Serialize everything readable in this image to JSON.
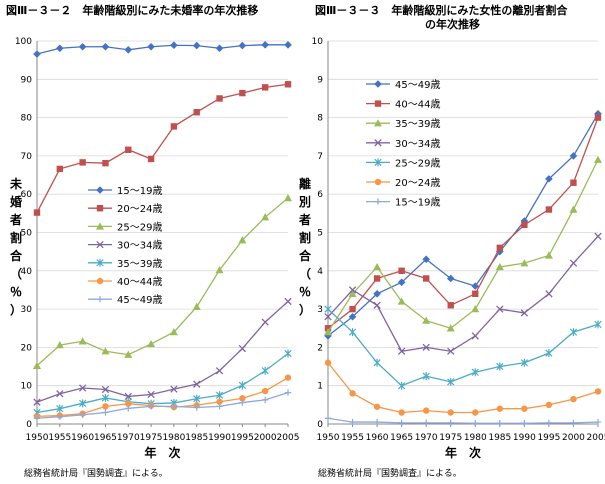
{
  "chart_data": [
    {
      "id": "left",
      "type": "line",
      "title": "図Ⅲ－３－２　年齢階級別にみた未婚率の年次推移",
      "xlabel": "年　次",
      "ylabel": "未婚者割合（％）",
      "ylim": [
        0,
        100
      ],
      "ytick_step": 10,
      "source": "総務省統計局『国勢調査』による。",
      "x": [
        1950,
        1955,
        1960,
        1965,
        1970,
        1975,
        1980,
        1985,
        1990,
        1995,
        2000,
        2005
      ],
      "grid": true,
      "legend_position": "middle-left",
      "series": [
        {
          "name": "15～19歳",
          "color": "#4472C4",
          "marker": "diamond",
          "values": [
            96.6,
            98.1,
            98.5,
            98.5,
            97.7,
            98.5,
            98.9,
            98.8,
            98.1,
            98.8,
            99.0,
            99.0
          ]
        },
        {
          "name": "20～24歳",
          "color": "#C0504D",
          "marker": "square",
          "values": [
            55.2,
            66.6,
            68.3,
            68.1,
            71.6,
            69.2,
            77.7,
            81.4,
            85.0,
            86.4,
            87.9,
            88.7
          ]
        },
        {
          "name": "25～29歳",
          "color": "#9BBB59",
          "marker": "triangle",
          "values": [
            15.2,
            20.6,
            21.6,
            19.0,
            18.1,
            20.9,
            24.0,
            30.6,
            40.2,
            48.0,
            54.0,
            59.0
          ]
        },
        {
          "name": "30～34歳",
          "color": "#8064A2",
          "marker": "x",
          "values": [
            5.7,
            7.9,
            9.4,
            9.0,
            7.2,
            7.7,
            9.1,
            10.4,
            13.9,
            19.7,
            26.6,
            32.0
          ]
        },
        {
          "name": "35～39歳",
          "color": "#4BACC6",
          "marker": "star",
          "values": [
            3.0,
            4.0,
            5.4,
            6.8,
            5.8,
            5.3,
            5.5,
            6.6,
            7.5,
            10.1,
            13.9,
            18.4
          ]
        },
        {
          "name": "40～44歳",
          "color": "#F79646",
          "marker": "circle",
          "values": [
            2.0,
            2.2,
            2.7,
            4.6,
            5.3,
            4.8,
            4.4,
            4.9,
            5.8,
            6.7,
            8.6,
            12.1
          ]
        },
        {
          "name": "45～49歳",
          "color": "#8EA9DB",
          "marker": "plus",
          "values": [
            1.5,
            1.9,
            2.4,
            3.0,
            4.1,
            4.6,
            4.6,
            4.3,
            4.6,
            5.6,
            6.3,
            8.2
          ]
        }
      ]
    },
    {
      "id": "right",
      "type": "line",
      "title": "図Ⅲ－３－３　年齢階級別にみた女性の離別者割合",
      "title2": "の年次推移",
      "xlabel": "年　次",
      "ylabel": "離別者割合（％）",
      "ylim": [
        0,
        10
      ],
      "ytick_step": 1,
      "source": "総務省統計局『国勢調査』による。",
      "x": [
        1950,
        1955,
        1960,
        1965,
        1970,
        1975,
        1980,
        1985,
        1990,
        1995,
        2000,
        2005
      ],
      "grid": true,
      "legend_position": "top-left",
      "series": [
        {
          "name": "45～49歳",
          "color": "#4472C4",
          "marker": "diamond",
          "values": [
            2.3,
            2.8,
            3.4,
            3.7,
            4.3,
            3.8,
            3.6,
            4.5,
            5.3,
            6.4,
            7.0,
            8.1
          ]
        },
        {
          "name": "40～44歳",
          "color": "#C0504D",
          "marker": "square",
          "values": [
            2.5,
            3.0,
            3.8,
            4.0,
            3.8,
            3.1,
            3.4,
            4.6,
            5.2,
            5.6,
            6.3,
            8.0
          ]
        },
        {
          "name": "35～39歳",
          "color": "#9BBB59",
          "marker": "triangle",
          "values": [
            2.4,
            3.4,
            4.1,
            3.2,
            2.7,
            2.5,
            3.0,
            4.1,
            4.2,
            4.4,
            5.6,
            6.9
          ]
        },
        {
          "name": "30～34歳",
          "color": "#8064A2",
          "marker": "x",
          "values": [
            2.8,
            3.5,
            3.1,
            1.9,
            2.0,
            1.9,
            2.3,
            3.0,
            2.9,
            3.4,
            4.2,
            4.9
          ]
        },
        {
          "name": "25～29歳",
          "color": "#4BACC6",
          "marker": "star",
          "values": [
            3.0,
            2.4,
            1.6,
            1.0,
            1.25,
            1.1,
            1.35,
            1.5,
            1.6,
            1.85,
            2.4,
            2.6
          ]
        },
        {
          "name": "20～24歳",
          "color": "#F79646",
          "marker": "circle",
          "values": [
            1.6,
            0.8,
            0.45,
            0.3,
            0.35,
            0.3,
            0.3,
            0.4,
            0.4,
            0.5,
            0.65,
            0.85
          ]
        },
        {
          "name": "15～19歳",
          "color": "#8EA9DB",
          "marker": "plus",
          "values": [
            0.15,
            0.05,
            0.05,
            0.03,
            0.03,
            0.03,
            0.02,
            0.02,
            0.02,
            0.03,
            0.03,
            0.05
          ]
        }
      ]
    }
  ]
}
